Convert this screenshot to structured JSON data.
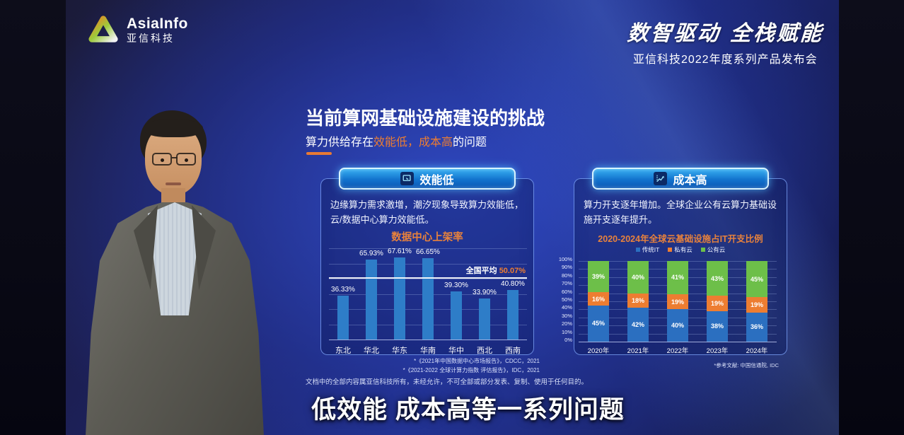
{
  "header": {
    "logo_text": "AsiaInfo",
    "logo_subtext": "亚信科技",
    "slogan": "数智驱动 全栈赋能",
    "event_line": "亚信科技2022年度系列产品发布会"
  },
  "slide": {
    "title": "当前算网基础设施建设的挑战",
    "subtitle": {
      "prefix": "算力供给存在",
      "highlight": "效能低，成本高",
      "suffix": "的问题"
    },
    "left_panel": {
      "header": "效能低",
      "body": "边缘算力需求激增，潮汐现象导致算力效能低，云/数据中心算力效能低。",
      "sources": [
        "*《2021年中国数据中心市场报告》，CDCC，2021",
        "*《2021-2022 全球计算力指数 评估报告》，IDC，2021"
      ]
    },
    "right_panel": {
      "header": "成本高",
      "body": "算力开支逐年增加。全球企业公有云算力基础设施开支逐年提升。",
      "source": "*参考文献: 中国信通院, IDC"
    },
    "disclaimer": "文档中的全部内容属亚信科技所有，未经允许，不可全部或部分发表、复制、使用于任何目的。"
  },
  "caption": "低效能 成本高等一系列问题",
  "colors": {
    "accent_orange": "#ed7d31",
    "button_border": "#d9f4ff",
    "bar_blue": "#2e7dc8"
  },
  "chart_data": [
    {
      "type": "bar",
      "title": "数据中心上架率",
      "categories": [
        "东北",
        "华北",
        "华东",
        "华南",
        "华中",
        "西北",
        "西南"
      ],
      "values": [
        36.33,
        65.93,
        67.61,
        66.65,
        39.3,
        33.9,
        40.8
      ],
      "value_labels": [
        "36.33%",
        "65.93%",
        "67.61%",
        "66.65%",
        "39.30%",
        "33.90%",
        "40.80%"
      ],
      "average_label": "全国平均",
      "average_value_label": "50.07%",
      "average_numeric": 50.07,
      "xlabel": "",
      "ylabel": "",
      "ylim": [
        0,
        75
      ],
      "grid": true,
      "bar_color": "#2e7dc8"
    },
    {
      "type": "stacked-bar",
      "title": "2020-2024年全球云基础设施占IT开支比例",
      "categories": [
        "2020年",
        "2021年",
        "2022年",
        "2023年",
        "2024年"
      ],
      "series": [
        {
          "name": "传统IT",
          "color": "#2b6fc0",
          "values": [
            45,
            42,
            40,
            38,
            36
          ]
        },
        {
          "name": "私有云",
          "color": "#ed7d31",
          "values": [
            16,
            18,
            19,
            19,
            19
          ]
        },
        {
          "name": "公有云",
          "color": "#6dbf49",
          "values": [
            39,
            40,
            41,
            43,
            45
          ]
        }
      ],
      "xlabel": "",
      "ylabel": "",
      "ylim": [
        0,
        100
      ],
      "ytick_step": 10,
      "grid": true,
      "legend_position": "top"
    }
  ]
}
